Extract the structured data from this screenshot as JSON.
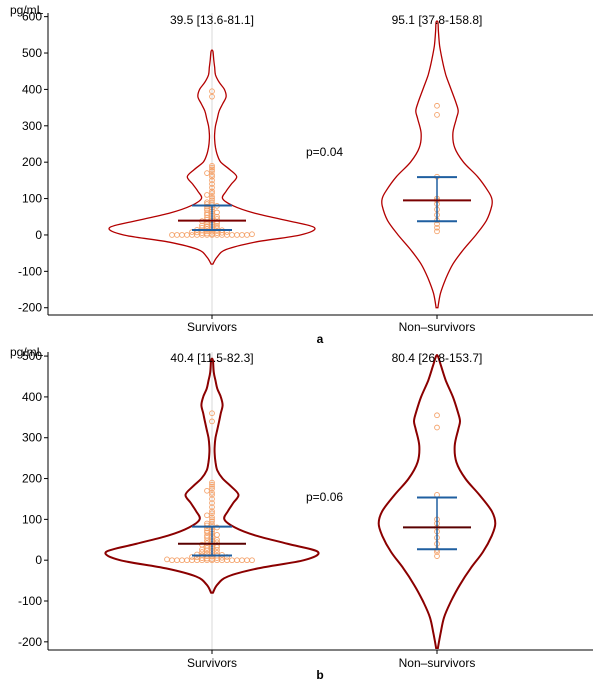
{
  "chart_data": [
    {
      "panel": "a",
      "type": "violin",
      "ylabel": "pg/mL",
      "ylim": [
        -220,
        610
      ],
      "yticks": [
        -200,
        -100,
        0,
        100,
        200,
        300,
        400,
        500,
        600
      ],
      "categories": [
        "Survivors",
        "Non–survivors"
      ],
      "p_value": "p=0.04",
      "colors": {
        "violin": "#b30000",
        "median": "#7a0000",
        "iqr": "#1f5fa0",
        "points": "#f4a26a",
        "center_line": "#d9d9d9"
      },
      "groups": [
        {
          "name": "Survivors",
          "summary": "39.5 [13.6-81.1]",
          "median": 39.5,
          "q1": 13.6,
          "q3": 81.1,
          "violin_profile": [
            [
              -80,
              0.5
            ],
            [
              -60,
              3
            ],
            [
              -40,
              8
            ],
            [
              -20,
              24
            ],
            [
              0,
              50
            ],
            [
              20,
              58
            ],
            [
              40,
              42
            ],
            [
              60,
              24
            ],
            [
              80,
              12
            ],
            [
              100,
              6
            ],
            [
              120,
              8
            ],
            [
              140,
              11
            ],
            [
              160,
              14
            ],
            [
              180,
              10
            ],
            [
              200,
              5
            ],
            [
              220,
              3
            ],
            [
              240,
              2
            ],
            [
              260,
              1.5
            ],
            [
              280,
              1.5
            ],
            [
              300,
              2
            ],
            [
              320,
              3
            ],
            [
              340,
              4
            ],
            [
              360,
              6
            ],
            [
              380,
              8
            ],
            [
              400,
              7
            ],
            [
              420,
              4
            ],
            [
              440,
              2
            ],
            [
              460,
              1.5
            ],
            [
              480,
              1
            ],
            [
              505,
              0.5
            ]
          ],
          "points": [
            0,
            0,
            0,
            0,
            0,
            0,
            0,
            0,
            0,
            0,
            0,
            0,
            0,
            0,
            0,
            0,
            2,
            3,
            4,
            5,
            5,
            6,
            7,
            8,
            8,
            9,
            10,
            11,
            12,
            13,
            14,
            15,
            16,
            18,
            20,
            22,
            24,
            25,
            26,
            28,
            30,
            32,
            34,
            35,
            36,
            38,
            40,
            42,
            44,
            46,
            48,
            50,
            52,
            55,
            58,
            60,
            62,
            65,
            68,
            70,
            72,
            75,
            78,
            80,
            82,
            85,
            88,
            90,
            95,
            100,
            105,
            110,
            115,
            120,
            130,
            140,
            150,
            160,
            165,
            170,
            175,
            180,
            185,
            190,
            380,
            395
          ]
        },
        {
          "name": "Non–survivors",
          "summary": "95.1 [37.8-158.8]",
          "median": 95.1,
          "q1": 37.8,
          "q3": 158.8,
          "violin_profile": [
            [
              -200,
              0.5
            ],
            [
              -160,
              2
            ],
            [
              -120,
              5
            ],
            [
              -80,
              9
            ],
            [
              -40,
              15
            ],
            [
              0,
              22
            ],
            [
              40,
              28
            ],
            [
              80,
              31
            ],
            [
              100,
              31
            ],
            [
              120,
              29
            ],
            [
              160,
              23
            ],
            [
              200,
              15
            ],
            [
              240,
              10
            ],
            [
              280,
              9
            ],
            [
              320,
              11
            ],
            [
              340,
              12
            ],
            [
              360,
              11
            ],
            [
              400,
              8
            ],
            [
              440,
              5
            ],
            [
              480,
              3
            ],
            [
              520,
              1.5
            ],
            [
              560,
              0.8
            ],
            [
              585,
              0.5
            ]
          ],
          "points": [
            10,
            20,
            30,
            40,
            55,
            70,
            85,
            95,
            100,
            160,
            330,
            355
          ]
        }
      ]
    },
    {
      "panel": "b",
      "type": "violin",
      "ylabel": "pg/mL",
      "ylim": [
        -220,
        510
      ],
      "yticks": [
        -200,
        -100,
        0,
        100,
        200,
        300,
        400,
        500
      ],
      "categories": [
        "Survivors",
        "Non–survivors"
      ],
      "p_value": "p=0.06",
      "colors": {
        "violin": "#8b0000",
        "median": "#5a0000",
        "iqr": "#1f5fa0",
        "points": "#f4a26a",
        "center_line": "#d9d9d9"
      },
      "groups": [
        {
          "name": "Survivors",
          "summary": "40.4 [11.5-82.3]",
          "median": 40.4,
          "q1": 11.5,
          "q3": 82.3,
          "violin_profile": [
            [
              -80,
              0.5
            ],
            [
              -60,
              3
            ],
            [
              -40,
              9
            ],
            [
              -20,
              26
            ],
            [
              0,
              52
            ],
            [
              20,
              60
            ],
            [
              40,
              43
            ],
            [
              60,
              25
            ],
            [
              80,
              13
            ],
            [
              100,
              7
            ],
            [
              120,
              9
            ],
            [
              140,
              12
            ],
            [
              160,
              15
            ],
            [
              180,
              11
            ],
            [
              200,
              6
            ],
            [
              220,
              3
            ],
            [
              240,
              2
            ],
            [
              260,
              1.5
            ],
            [
              280,
              1.5
            ],
            [
              300,
              2
            ],
            [
              320,
              3
            ],
            [
              340,
              4
            ],
            [
              360,
              5
            ],
            [
              380,
              6
            ],
            [
              400,
              5
            ],
            [
              420,
              3
            ],
            [
              440,
              2
            ],
            [
              460,
              1
            ],
            [
              490,
              0.5
            ]
          ],
          "points": [
            0,
            0,
            0,
            0,
            0,
            0,
            0,
            0,
            0,
            0,
            0,
            0,
            0,
            0,
            0,
            0,
            0,
            2,
            3,
            4,
            5,
            5,
            6,
            7,
            8,
            8,
            9,
            10,
            11,
            12,
            13,
            14,
            15,
            16,
            18,
            20,
            22,
            24,
            25,
            26,
            28,
            30,
            32,
            34,
            35,
            36,
            38,
            40,
            42,
            44,
            46,
            48,
            50,
            52,
            55,
            58,
            60,
            62,
            65,
            68,
            70,
            72,
            75,
            78,
            80,
            82,
            85,
            88,
            90,
            95,
            100,
            105,
            110,
            115,
            120,
            130,
            140,
            150,
            160,
            165,
            170,
            175,
            180,
            185,
            190,
            340,
            360
          ]
        },
        {
          "name": "Non–survivors",
          "summary": "80.4 [26.8-153.7]",
          "median": 80.4,
          "q1": 26.8,
          "q3": 153.7,
          "violin_profile": [
            [
              -215,
              0.5
            ],
            [
              -180,
              2
            ],
            [
              -140,
              4
            ],
            [
              -100,
              8
            ],
            [
              -60,
              13
            ],
            [
              -20,
              19
            ],
            [
              20,
              26
            ],
            [
              60,
              31
            ],
            [
              90,
              33
            ],
            [
              120,
              31
            ],
            [
              160,
              24
            ],
            [
              200,
              16
            ],
            [
              240,
              11
            ],
            [
              280,
              10
            ],
            [
              320,
              12
            ],
            [
              340,
              13
            ],
            [
              360,
              12
            ],
            [
              400,
              9
            ],
            [
              440,
              5
            ],
            [
              480,
              2
            ],
            [
              500,
              0.5
            ]
          ],
          "points": [
            10,
            20,
            25,
            40,
            55,
            70,
            80,
            90,
            100,
            160,
            325,
            355
          ]
        }
      ]
    }
  ],
  "panel_labels": [
    "a",
    "b"
  ]
}
